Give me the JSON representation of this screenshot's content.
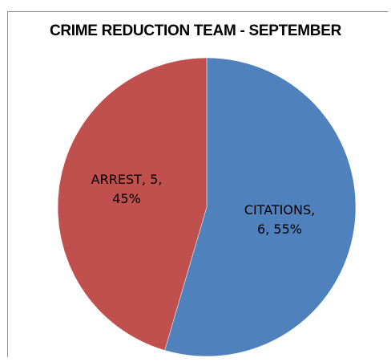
{
  "chart_data": {
    "type": "pie",
    "title": "CRIME REDUCTION TEAM - SEPTEMBER",
    "slices": [
      {
        "label": "CITATIONS",
        "value": 6,
        "percent": "55%",
        "color": "#4f81bd",
        "text_lines": [
          "CITATIONS,",
          "6, 55%"
        ]
      },
      {
        "label": "ARREST",
        "value": 5,
        "percent": "45%",
        "color": "#c0504d",
        "text_lines": [
          "ARREST, 5,",
          "45%"
        ]
      }
    ],
    "legend": "none"
  }
}
